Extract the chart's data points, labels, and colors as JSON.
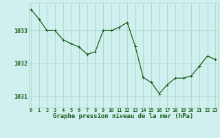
{
  "x": [
    0,
    1,
    2,
    3,
    4,
    5,
    6,
    7,
    8,
    9,
    10,
    11,
    12,
    13,
    14,
    15,
    16,
    17,
    18,
    19,
    20,
    21,
    22,
    23
  ],
  "y": [
    1033.65,
    1033.35,
    1033.0,
    1033.0,
    1032.72,
    1032.6,
    1032.5,
    1032.28,
    1032.35,
    1033.0,
    1033.0,
    1033.1,
    1033.25,
    1032.52,
    1031.57,
    1031.42,
    1031.08,
    1031.35,
    1031.55,
    1031.55,
    1031.62,
    1031.92,
    1032.22,
    1032.12
  ],
  "line_color": "#1a5c1a",
  "marker": "+",
  "marker_size": 3,
  "marker_linewidth": 0.8,
  "line_width": 0.9,
  "bg_color": "#cff0ee",
  "grid_color": "#b0d8d0",
  "xlabel": "Graphe pression niveau de la mer (hPa)",
  "xlabel_color": "#1a5c1a",
  "tick_color": "#1a5c1a",
  "yticks": [
    1031,
    1032,
    1033
  ],
  "ylim": [
    1030.65,
    1033.85
  ],
  "xlim": [
    -0.3,
    23.3
  ],
  "xtick_labels": [
    "0",
    "1",
    "2",
    "3",
    "4",
    "5",
    "6",
    "7",
    "8",
    "9",
    "10",
    "11",
    "12",
    "13",
    "14",
    "15",
    "16",
    "17",
    "18",
    "19",
    "20",
    "21",
    "22",
    "23"
  ],
  "ytick_fontsize": 6.0,
  "xtick_fontsize": 5.0,
  "xlabel_fontsize": 6.5
}
